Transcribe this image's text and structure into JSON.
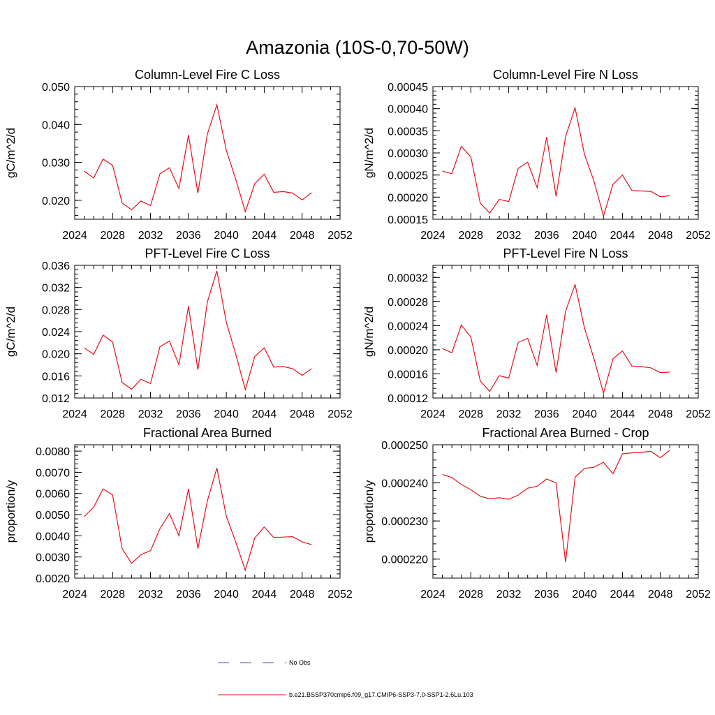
{
  "figure": {
    "title": "Amazonia (10S-0,70-50W)",
    "line_color": "#e8101a",
    "axis_color": "#000000",
    "background": "#ffffff"
  },
  "legend": {
    "placement": "bottom-center",
    "entries": [
      {
        "label": "No Obs",
        "style": "dashed",
        "color": "#4a4aa8"
      },
      {
        "label": "b.e21.BSSP370cmip6.f09_g17.CMIP6-SSP3-7.0-SSP1-2.6Lu.103",
        "style": "solid",
        "color": "#e8101a"
      }
    ]
  },
  "chart_data": [
    {
      "type": "line",
      "title": "Column-Level Fire C Loss",
      "xlabel": "",
      "ylabel": "gC/m^2/d",
      "xlim": [
        2024,
        2052
      ],
      "ylim": [
        0.015,
        0.05
      ],
      "xticks": [
        2024,
        2028,
        2032,
        2036,
        2040,
        2044,
        2048,
        2052
      ],
      "xtick_labels": [
        "2024",
        "2028",
        "2032",
        "2036",
        "2040",
        "2044",
        "2048",
        "2052"
      ],
      "yticks": [
        0.02,
        0.03,
        0.04,
        0.05
      ],
      "ytick_labels": [
        "0.020",
        "0.030",
        "0.040",
        "0.050"
      ],
      "grid": false,
      "x": [
        2025,
        2026,
        2027,
        2028,
        2029,
        2030,
        2031,
        2032,
        2033,
        2034,
        2035,
        2036,
        2037,
        2038,
        2039,
        2040,
        2041,
        2042,
        2043,
        2044,
        2045,
        2046,
        2047,
        2048,
        2049
      ],
      "series": [
        {
          "values": [
            0.0277,
            0.0259,
            0.0309,
            0.0292,
            0.0193,
            0.0175,
            0.0198,
            0.0186,
            0.027,
            0.0286,
            0.0231,
            0.0372,
            0.0219,
            0.0375,
            0.0452,
            0.0332,
            0.0255,
            0.017,
            0.0244,
            0.0269,
            0.0221,
            0.0223,
            0.0219,
            0.0201,
            0.022
          ]
        }
      ]
    },
    {
      "type": "line",
      "title": "Column-Level Fire N Loss",
      "xlabel": "",
      "ylabel": "gN/m^2/d",
      "xlim": [
        2024,
        2052
      ],
      "ylim": [
        0.00015,
        0.00045
      ],
      "xticks": [
        2024,
        2028,
        2032,
        2036,
        2040,
        2044,
        2048,
        2052
      ],
      "xtick_labels": [
        "2024",
        "2028",
        "2032",
        "2036",
        "2040",
        "2044",
        "2048",
        "2052"
      ],
      "yticks": [
        0.00015,
        0.0002,
        0.00025,
        0.0003,
        0.00035,
        0.0004,
        0.00045
      ],
      "ytick_labels": [
        "0.00015",
        "0.00020",
        "0.00025",
        "0.00030",
        "0.00035",
        "0.00040",
        "0.00045"
      ],
      "grid": false,
      "x": [
        2025,
        2026,
        2027,
        2028,
        2029,
        2030,
        2031,
        2032,
        2033,
        2034,
        2035,
        2036,
        2037,
        2038,
        2039,
        2040,
        2041,
        2042,
        2043,
        2044,
        2045,
        2046,
        2047,
        2048,
        2049
      ],
      "series": [
        {
          "values": [
            0.000259,
            0.000253,
            0.000315,
            0.000291,
            0.000186,
            0.000164,
            0.000195,
            0.00019,
            0.000265,
            0.000279,
            0.000221,
            0.000336,
            0.000202,
            0.000337,
            0.000402,
            0.000296,
            0.000236,
            0.000157,
            0.000229,
            0.00025,
            0.000215,
            0.000214,
            0.000213,
            0.000201,
            0.000203
          ]
        }
      ]
    },
    {
      "type": "line",
      "title": "PFT-Level Fire C Loss",
      "xlabel": "",
      "ylabel": "gC/m^2/d",
      "xlim": [
        2024,
        2052
      ],
      "ylim": [
        0.012,
        0.036
      ],
      "xticks": [
        2024,
        2028,
        2032,
        2036,
        2040,
        2044,
        2048,
        2052
      ],
      "xtick_labels": [
        "2024",
        "2028",
        "2032",
        "2036",
        "2040",
        "2044",
        "2048",
        "2052"
      ],
      "yticks": [
        0.012,
        0.016,
        0.02,
        0.024,
        0.028,
        0.032,
        0.036
      ],
      "ytick_labels": [
        "0.012",
        "0.016",
        "0.020",
        "0.024",
        "0.028",
        "0.032",
        "0.036"
      ],
      "grid": false,
      "x": [
        2025,
        2026,
        2027,
        2028,
        2029,
        2030,
        2031,
        2032,
        2033,
        2034,
        2035,
        2036,
        2037,
        2038,
        2039,
        2040,
        2041,
        2042,
        2043,
        2044,
        2045,
        2046,
        2047,
        2048,
        2049
      ],
      "series": [
        {
          "values": [
            0.0211,
            0.0199,
            0.0234,
            0.0221,
            0.0148,
            0.0136,
            0.0154,
            0.0146,
            0.0213,
            0.0223,
            0.018,
            0.0286,
            0.0171,
            0.0294,
            0.035,
            0.0257,
            0.0199,
            0.0135,
            0.0195,
            0.0211,
            0.0176,
            0.0177,
            0.0173,
            0.0161,
            0.0173
          ]
        }
      ]
    },
    {
      "type": "line",
      "title": "PFT-Level Fire N Loss",
      "xlabel": "",
      "ylabel": "gN/m^2/d",
      "xlim": [
        2024,
        2052
      ],
      "ylim": [
        0.00012,
        0.00034
      ],
      "xticks": [
        2024,
        2028,
        2032,
        2036,
        2040,
        2044,
        2048,
        2052
      ],
      "xtick_labels": [
        "2024",
        "2028",
        "2032",
        "2036",
        "2040",
        "2044",
        "2048",
        "2052"
      ],
      "yticks": [
        0.00012,
        0.00016,
        0.0002,
        0.00024,
        0.00028,
        0.00032
      ],
      "ytick_labels": [
        "0.00012",
        "0.00016",
        "0.00020",
        "0.00024",
        "0.00028",
        "0.00032"
      ],
      "grid": false,
      "x": [
        2025,
        2026,
        2027,
        2028,
        2029,
        2030,
        2031,
        2032,
        2033,
        2034,
        2035,
        2036,
        2037,
        2038,
        2039,
        2040,
        2041,
        2042,
        2043,
        2044,
        2045,
        2046,
        2047,
        2048,
        2049
      ],
      "series": [
        {
          "values": [
            0.000202,
            0.000195,
            0.000241,
            0.000221,
            0.000148,
            0.000131,
            0.000157,
            0.000153,
            0.000212,
            0.000219,
            0.000174,
            0.000258,
            0.000162,
            0.000264,
            0.000308,
            0.000236,
            0.000185,
            0.000128,
            0.000185,
            0.000198,
            0.000173,
            0.000172,
            0.00017,
            0.000162,
            0.000163
          ]
        }
      ]
    },
    {
      "type": "line",
      "title": "Fractional Area Burned",
      "xlabel": "",
      "ylabel": "proportion/y",
      "xlim": [
        2024,
        2052
      ],
      "ylim": [
        0.002,
        0.0083
      ],
      "xticks": [
        2024,
        2028,
        2032,
        2036,
        2040,
        2044,
        2048,
        2052
      ],
      "xtick_labels": [
        "2024",
        "2028",
        "2032",
        "2036",
        "2040",
        "2044",
        "2048",
        "2052"
      ],
      "yticks": [
        0.002,
        0.003,
        0.004,
        0.005,
        0.006,
        0.007,
        0.008
      ],
      "ytick_labels": [
        "0.0020",
        "0.0030",
        "0.0040",
        "0.0050",
        "0.0060",
        "0.0070",
        "0.0080"
      ],
      "grid": false,
      "x": [
        2025,
        2026,
        2027,
        2028,
        2029,
        2030,
        2031,
        2032,
        2033,
        2034,
        2035,
        2036,
        2037,
        2038,
        2039,
        2040,
        2041,
        2042,
        2043,
        2044,
        2045,
        2046,
        2047,
        2048,
        2049
      ],
      "series": [
        {
          "values": [
            0.00491,
            0.00535,
            0.00622,
            0.00593,
            0.0034,
            0.0027,
            0.00311,
            0.0033,
            0.00434,
            0.00505,
            0.004,
            0.00622,
            0.0034,
            0.00565,
            0.0072,
            0.00493,
            0.0037,
            0.00237,
            0.0039,
            0.00442,
            0.00392,
            0.00394,
            0.00396,
            0.00372,
            0.00358
          ]
        }
      ]
    },
    {
      "type": "line",
      "title": "Fractional Area Burned - Crop",
      "xlabel": "",
      "ylabel": "proportion/y",
      "xlim": [
        2024,
        2052
      ],
      "ylim": [
        0.000215,
        0.00025
      ],
      "xticks": [
        2024,
        2028,
        2032,
        2036,
        2040,
        2044,
        2048,
        2052
      ],
      "xtick_labels": [
        "2024",
        "2028",
        "2032",
        "2036",
        "2040",
        "2044",
        "2048",
        "2052"
      ],
      "yticks": [
        0.00022,
        0.00023,
        0.00024,
        0.00025
      ],
      "ytick_labels": [
        "0.000220",
        "0.000230",
        "0.000240",
        "0.000250"
      ],
      "grid": false,
      "x": [
        2025,
        2026,
        2027,
        2028,
        2029,
        2030,
        2031,
        2032,
        2033,
        2034,
        2035,
        2036,
        2037,
        2038,
        2039,
        2040,
        2041,
        2042,
        2043,
        2044,
        2045,
        2046,
        2047,
        2048,
        2049
      ],
      "series": [
        {
          "values": [
            0.0002422,
            0.0002414,
            0.0002396,
            0.0002382,
            0.0002365,
            0.0002358,
            0.0002361,
            0.0002357,
            0.0002368,
            0.0002386,
            0.0002391,
            0.000241,
            0.00024,
            0.0002192,
            0.0002415,
            0.0002438,
            0.0002441,
            0.0002454,
            0.0002424,
            0.0002476,
            0.0002479,
            0.000248,
            0.0002483,
            0.0002466,
            0.0002486
          ]
        }
      ]
    }
  ]
}
